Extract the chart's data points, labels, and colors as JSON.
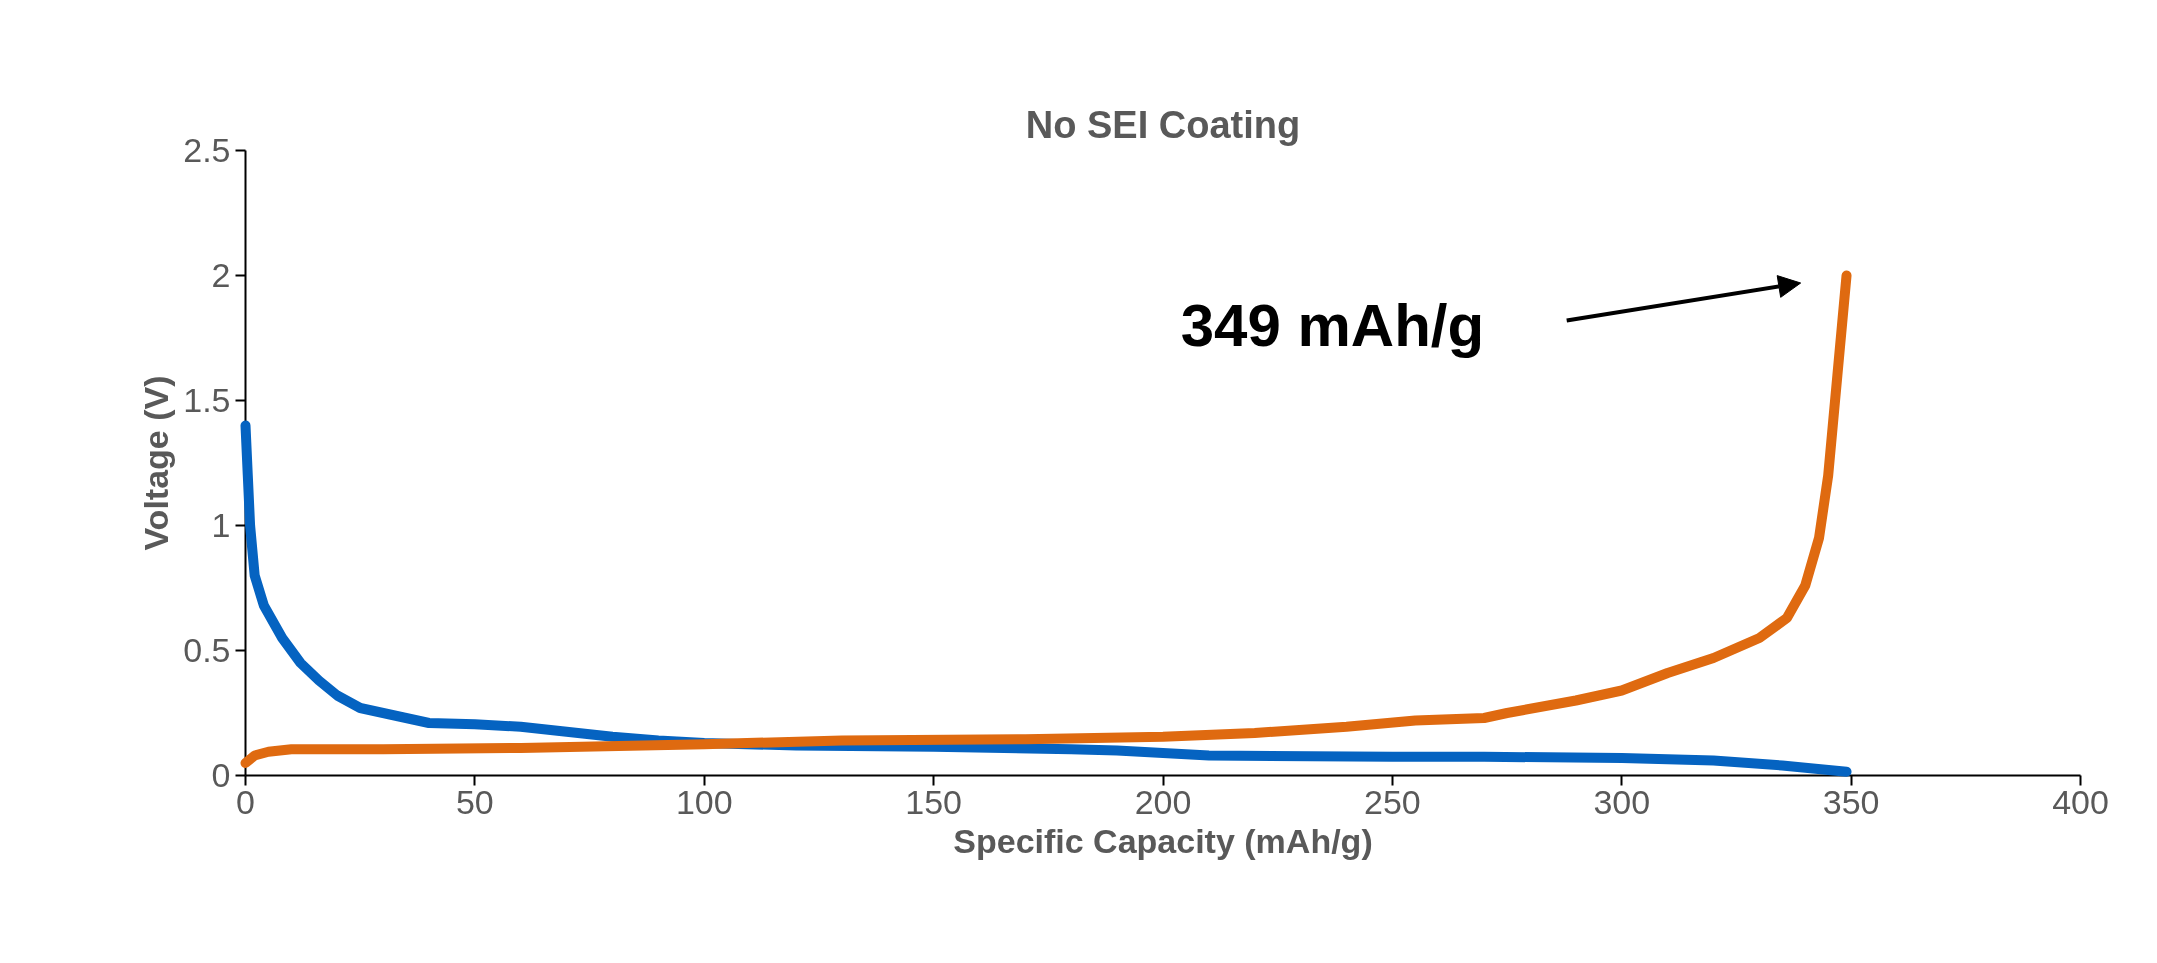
{
  "chart_data": {
    "type": "line",
    "title": "No SEI Coating",
    "xlabel": "Specific Capacity (mAh/g)",
    "ylabel": "Voltage (V)",
    "xlim": [
      0,
      400
    ],
    "xticks": [
      0,
      50,
      100,
      150,
      200,
      250,
      300,
      350,
      400
    ],
    "ylim": [
      0,
      2.5
    ],
    "yticks": [
      0,
      0.5,
      1,
      1.5,
      2,
      2.5
    ],
    "marker": "none",
    "line_style": "solid",
    "annotations": [
      "349 mAh/g"
    ],
    "series": [
      {
        "color": "#0563c1",
        "x": [
          0,
          0.5,
          1,
          2,
          4,
          8,
          12,
          16,
          20,
          25,
          30,
          40,
          50,
          60,
          70,
          80,
          90,
          100,
          120,
          150,
          180,
          190,
          210,
          250,
          270,
          300,
          320,
          335,
          349
        ],
        "values": [
          1.4,
          1.2,
          1.0,
          0.8,
          0.68,
          0.55,
          0.45,
          0.38,
          0.32,
          0.27,
          0.25,
          0.21,
          0.205,
          0.195,
          0.175,
          0.155,
          0.14,
          0.13,
          0.12,
          0.115,
          0.105,
          0.1,
          0.08,
          0.075,
          0.075,
          0.07,
          0.06,
          0.04,
          0.015
        ]
      },
      {
        "color": "#df6a10",
        "x": [
          0,
          2,
          5,
          10,
          30,
          60,
          100,
          130,
          170,
          200,
          220,
          240,
          255,
          270,
          275,
          290,
          300,
          310,
          320,
          330,
          336,
          340,
          343,
          345,
          346,
          347,
          348,
          349
        ],
        "values": [
          0.05,
          0.08,
          0.095,
          0.105,
          0.105,
          0.11,
          0.125,
          0.14,
          0.145,
          0.155,
          0.17,
          0.195,
          0.22,
          0.23,
          0.25,
          0.3,
          0.34,
          0.41,
          0.47,
          0.55,
          0.63,
          0.76,
          0.95,
          1.2,
          1.4,
          1.6,
          1.8,
          2.0
        ]
      }
    ]
  }
}
